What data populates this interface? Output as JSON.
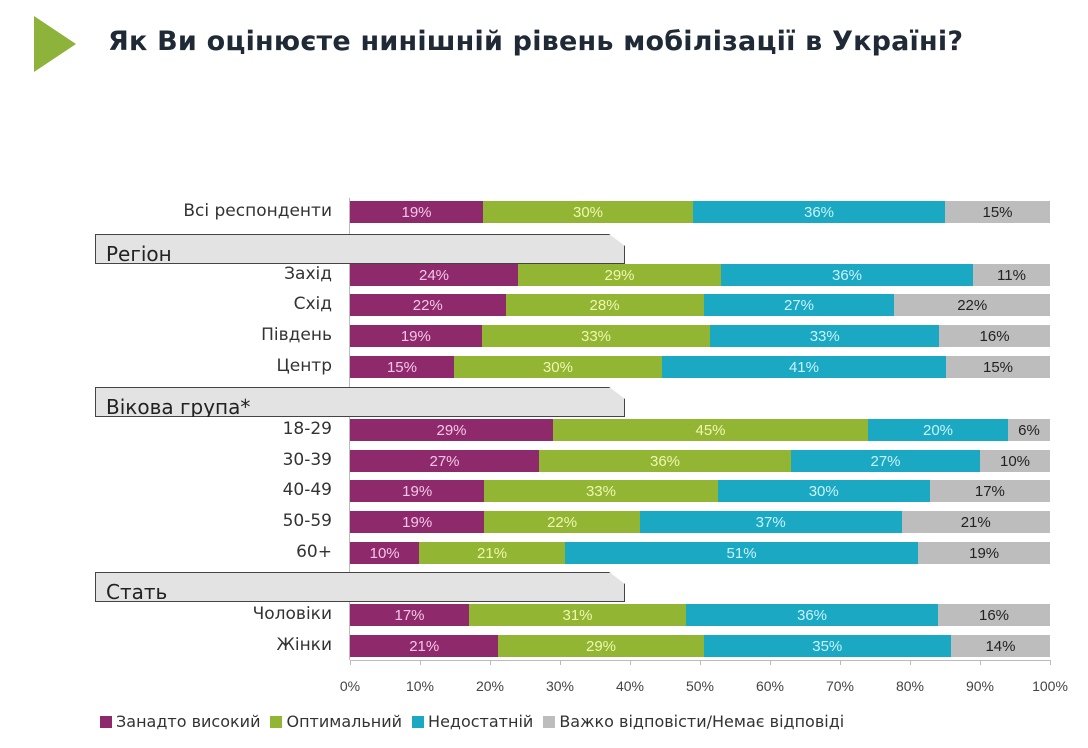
{
  "title": "Як Ви оцінюєте нинішній рівень мобілізації в Україні?",
  "chart_data": {
    "type": "bar",
    "stacked": true,
    "orientation": "horizontal",
    "title": "Як Ви оцінюєте нинішній рівень мобілізації в Україні?",
    "xlim": [
      0,
      100
    ],
    "x_ticks": [
      "0%",
      "10%",
      "20%",
      "30%",
      "40%",
      "50%",
      "60%",
      "70%",
      "80%",
      "90%",
      "100%"
    ],
    "legend_position": "bottom",
    "series": [
      {
        "name": "Занадто високий",
        "color": "#8e2a6c"
      },
      {
        "name": "Оптимальний",
        "color": "#93b534"
      },
      {
        "name": "Недостатній",
        "color": "#1ba8c3"
      },
      {
        "name": "Важко відповісти/Немає відповіді",
        "color": "#bdbdbd"
      }
    ],
    "rows": [
      {
        "label": "Всі респонденти",
        "values": [
          19,
          30,
          36,
          15
        ]
      },
      {
        "group": "Регіон"
      },
      {
        "label": "Захід",
        "values": [
          24,
          29,
          36,
          11
        ]
      },
      {
        "label": "Схід",
        "values": [
          22,
          28,
          27,
          22
        ]
      },
      {
        "label": "Південь",
        "values": [
          19,
          33,
          33,
          16
        ]
      },
      {
        "label": "Центр",
        "values": [
          15,
          30,
          41,
          15
        ]
      },
      {
        "group": "Вікова група*"
      },
      {
        "label": "18-29",
        "values": [
          29,
          45,
          20,
          6
        ]
      },
      {
        "label": "30-39",
        "values": [
          27,
          36,
          27,
          10
        ]
      },
      {
        "label": "40-49",
        "values": [
          19,
          33,
          30,
          17
        ]
      },
      {
        "label": "50-59",
        "values": [
          19,
          22,
          37,
          21
        ]
      },
      {
        "label": "60+",
        "values": [
          10,
          21,
          51,
          19
        ]
      },
      {
        "group": "Стать"
      },
      {
        "label": "Чоловіки",
        "values": [
          17,
          31,
          36,
          16
        ]
      },
      {
        "label": "Жінки",
        "values": [
          21,
          29,
          35,
          14
        ]
      }
    ]
  }
}
